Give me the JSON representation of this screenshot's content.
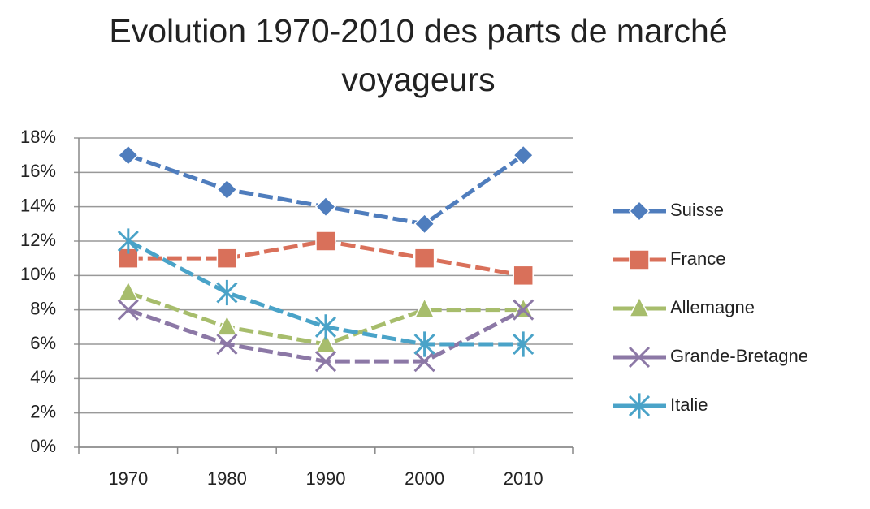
{
  "chart_data": {
    "type": "line",
    "title": "Evolution 1970-2010 des parts de marché voyageurs",
    "categories": [
      "1970",
      "1980",
      "1990",
      "2000",
      "2010"
    ],
    "series": [
      {
        "name": "Suisse",
        "color": "#4f7dbd",
        "marker": "diamond",
        "values": [
          17,
          15,
          14,
          13,
          17
        ]
      },
      {
        "name": "France",
        "color": "#d9705a",
        "marker": "square",
        "values": [
          11,
          11,
          12,
          11,
          10
        ]
      },
      {
        "name": "Allemagne",
        "color": "#a7bd6c",
        "marker": "triangle",
        "values": [
          9,
          7,
          6,
          8,
          8
        ]
      },
      {
        "name": "Grande-Bretagne",
        "color": "#8c78a6",
        "marker": "x",
        "values": [
          8,
          6,
          5,
          5,
          8
        ]
      },
      {
        "name": "Italie",
        "color": "#4aa3c8",
        "marker": "star",
        "values": [
          12,
          9,
          7,
          6,
          6
        ]
      }
    ],
    "ylim": [
      0,
      18
    ],
    "yticks": [
      {
        "value": 0,
        "label": "0%"
      },
      {
        "value": 2,
        "label": "2%"
      },
      {
        "value": 4,
        "label": "4%"
      },
      {
        "value": 6,
        "label": "6%"
      },
      {
        "value": 8,
        "label": "8%"
      },
      {
        "value": 10,
        "label": "10%"
      },
      {
        "value": 12,
        "label": "12%"
      },
      {
        "value": 14,
        "label": "14%"
      },
      {
        "value": 16,
        "label": "16%"
      },
      {
        "value": 18,
        "label": "18%"
      }
    ],
    "grid": true,
    "legend": "right"
  }
}
